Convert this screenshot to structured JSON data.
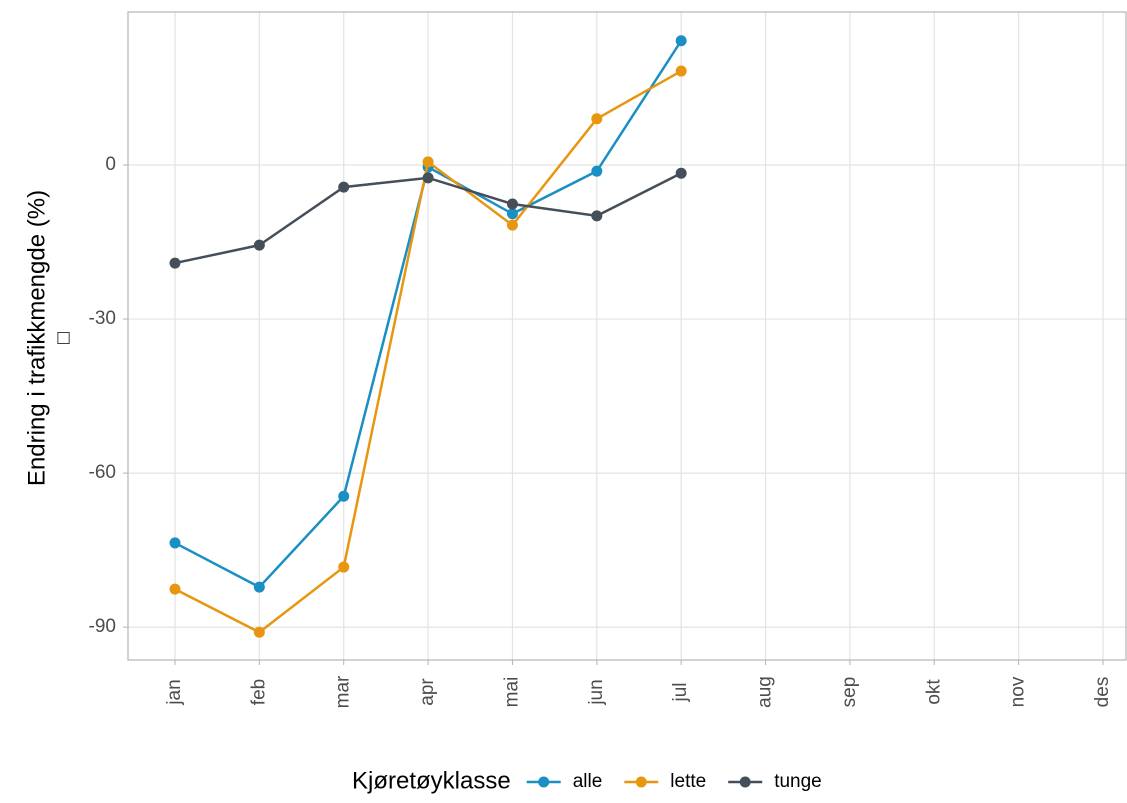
{
  "chart_data": {
    "type": "line",
    "ylabel": "Endring i trafikkmengde (%)",
    "ylabel_note": "□",
    "categories": [
      "jan",
      "feb",
      "mar",
      "apr",
      "mai",
      "jun",
      "jul",
      "aug",
      "sep",
      "okt",
      "nov",
      "des"
    ],
    "series": [
      {
        "name": "alle",
        "color": "#1a8fc4",
        "values": [
          -73.6,
          -82.2,
          -64.5,
          -0.4,
          -9.5,
          -1.2,
          24.2,
          null,
          null,
          null,
          null,
          null
        ]
      },
      {
        "name": "lette",
        "color": "#e8960f",
        "values": [
          -82.6,
          -91.0,
          -78.3,
          0.6,
          -11.7,
          9.0,
          18.3,
          null,
          null,
          null,
          null,
          null
        ]
      },
      {
        "name": "tunge",
        "color": "#444f5a",
        "values": [
          -19.1,
          -15.6,
          -4.3,
          -2.5,
          -7.6,
          -9.9,
          -1.6,
          null,
          null,
          null,
          null,
          null
        ]
      }
    ],
    "ylim": [
      -96.4,
      29.8
    ],
    "yticks": [
      -90,
      -60,
      -30,
      0
    ],
    "grid": true,
    "legend_title": "Kjøretøyklasse",
    "legend_position": "bottom"
  }
}
